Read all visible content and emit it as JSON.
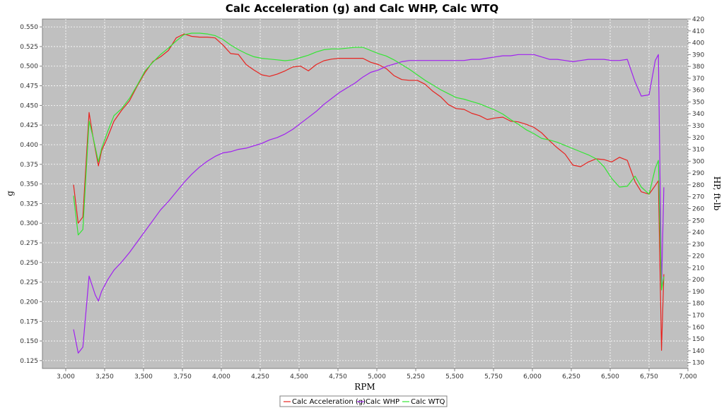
{
  "chart_data": {
    "type": "line",
    "title": "Calc Acceleration (g) and Calc WHP, Calc WTQ",
    "xlabel": "RPM",
    "ylabel_left": "g",
    "ylabel_right": "HP, ft-lb",
    "xlim": [
      2850,
      7000
    ],
    "ylim_left": [
      0.115,
      0.56
    ],
    "ylim_right": [
      125,
      420
    ],
    "x_ticks": [
      3000,
      3250,
      3500,
      3750,
      4000,
      4250,
      4500,
      4750,
      5000,
      5250,
      5500,
      5750,
      6000,
      6250,
      6500,
      6750,
      7000
    ],
    "x_tick_labels": [
      "3,000",
      "3,250",
      "3,500",
      "3,750",
      "4,000",
      "4,250",
      "4,500",
      "4,750",
      "5,000",
      "5,250",
      "5,500",
      "5,750",
      "6,000",
      "6,250",
      "6,500",
      "6,750",
      "7,000"
    ],
    "y_left_ticks": [
      0.125,
      0.15,
      0.175,
      0.2,
      0.225,
      0.25,
      0.275,
      0.3,
      0.325,
      0.35,
      0.375,
      0.4,
      0.425,
      0.45,
      0.475,
      0.5,
      0.525,
      0.55
    ],
    "y_left_tick_labels": [
      "0.125",
      "0.150",
      "0.175",
      "0.200",
      "0.225",
      "0.250",
      "0.275",
      "0.300",
      "0.325",
      "0.350",
      "0.375",
      "0.400",
      "0.425",
      "0.450",
      "0.475",
      "0.500",
      "0.525",
      "0.550"
    ],
    "y_right_ticks": [
      130,
      140,
      150,
      160,
      170,
      180,
      190,
      200,
      210,
      220,
      230,
      240,
      250,
      260,
      270,
      280,
      290,
      300,
      310,
      320,
      330,
      340,
      350,
      360,
      370,
      380,
      390,
      400,
      410,
      420
    ],
    "y_right_tick_labels": [
      "130",
      "140",
      "150",
      "160",
      "170",
      "180",
      "190",
      "200",
      "210",
      "220",
      "230",
      "240",
      "250",
      "260",
      "270",
      "280",
      "290",
      "300",
      "310",
      "320",
      "330",
      "340",
      "350",
      "360",
      "370",
      "380",
      "390",
      "400",
      "410",
      "420"
    ],
    "grid": true,
    "legend_position": "bottom-center",
    "plot_background": "#c0c0c0",
    "series": [
      {
        "name": "Calc Acceleration (g)",
        "axis": "left",
        "color": "#e8231f",
        "points": [
          [
            3050,
            0.349
          ],
          [
            3080,
            0.3
          ],
          [
            3110,
            0.308
          ],
          [
            3150,
            0.441
          ],
          [
            3175,
            0.41
          ],
          [
            3210,
            0.373
          ],
          [
            3230,
            0.392
          ],
          [
            3270,
            0.41
          ],
          [
            3310,
            0.43
          ],
          [
            3360,
            0.444
          ],
          [
            3410,
            0.456
          ],
          [
            3460,
            0.475
          ],
          [
            3510,
            0.492
          ],
          [
            3560,
            0.506
          ],
          [
            3610,
            0.512
          ],
          [
            3660,
            0.52
          ],
          [
            3710,
            0.536
          ],
          [
            3760,
            0.541
          ],
          [
            3810,
            0.538
          ],
          [
            3860,
            0.537
          ],
          [
            3910,
            0.537
          ],
          [
            3960,
            0.536
          ],
          [
            4010,
            0.527
          ],
          [
            4060,
            0.516
          ],
          [
            4110,
            0.515
          ],
          [
            4160,
            0.502
          ],
          [
            4210,
            0.495
          ],
          [
            4260,
            0.489
          ],
          [
            4310,
            0.487
          ],
          [
            4360,
            0.49
          ],
          [
            4410,
            0.494
          ],
          [
            4460,
            0.499
          ],
          [
            4510,
            0.5
          ],
          [
            4560,
            0.494
          ],
          [
            4610,
            0.502
          ],
          [
            4660,
            0.507
          ],
          [
            4710,
            0.509
          ],
          [
            4760,
            0.51
          ],
          [
            4810,
            0.51
          ],
          [
            4860,
            0.51
          ],
          [
            4910,
            0.51
          ],
          [
            4960,
            0.505
          ],
          [
            5010,
            0.502
          ],
          [
            5060,
            0.497
          ],
          [
            5110,
            0.488
          ],
          [
            5160,
            0.483
          ],
          [
            5210,
            0.482
          ],
          [
            5260,
            0.482
          ],
          [
            5310,
            0.477
          ],
          [
            5360,
            0.468
          ],
          [
            5410,
            0.461
          ],
          [
            5460,
            0.451
          ],
          [
            5510,
            0.446
          ],
          [
            5560,
            0.445
          ],
          [
            5610,
            0.44
          ],
          [
            5660,
            0.437
          ],
          [
            5710,
            0.432
          ],
          [
            5760,
            0.434
          ],
          [
            5810,
            0.435
          ],
          [
            5860,
            0.43
          ],
          [
            5910,
            0.429
          ],
          [
            5960,
            0.426
          ],
          [
            6010,
            0.422
          ],
          [
            6060,
            0.415
          ],
          [
            6110,
            0.405
          ],
          [
            6160,
            0.396
          ],
          [
            6210,
            0.388
          ],
          [
            6260,
            0.374
          ],
          [
            6310,
            0.372
          ],
          [
            6360,
            0.378
          ],
          [
            6410,
            0.382
          ],
          [
            6460,
            0.381
          ],
          [
            6510,
            0.378
          ],
          [
            6560,
            0.384
          ],
          [
            6610,
            0.38
          ],
          [
            6660,
            0.353
          ],
          [
            6700,
            0.34
          ],
          [
            6750,
            0.337
          ],
          [
            6790,
            0.348
          ],
          [
            6810,
            0.354
          ],
          [
            6830,
            0.138
          ],
          [
            6845,
            0.235
          ]
        ]
      },
      {
        "name": "Calc WHP",
        "axis": "right",
        "color": "#a020f0",
        "points": [
          [
            3050,
            158
          ],
          [
            3080,
            138
          ],
          [
            3110,
            143
          ],
          [
            3150,
            203
          ],
          [
            3190,
            187
          ],
          [
            3210,
            182
          ],
          [
            3230,
            190
          ],
          [
            3270,
            200
          ],
          [
            3310,
            208
          ],
          [
            3360,
            215
          ],
          [
            3410,
            223
          ],
          [
            3460,
            232
          ],
          [
            3510,
            241
          ],
          [
            3560,
            250
          ],
          [
            3610,
            259
          ],
          [
            3660,
            266
          ],
          [
            3710,
            274
          ],
          [
            3760,
            282
          ],
          [
            3810,
            289
          ],
          [
            3860,
            295
          ],
          [
            3910,
            300
          ],
          [
            3960,
            304
          ],
          [
            4010,
            307
          ],
          [
            4060,
            308
          ],
          [
            4110,
            310
          ],
          [
            4160,
            311
          ],
          [
            4210,
            313
          ],
          [
            4260,
            315
          ],
          [
            4310,
            318
          ],
          [
            4360,
            320
          ],
          [
            4410,
            323
          ],
          [
            4460,
            327
          ],
          [
            4510,
            332
          ],
          [
            4560,
            337
          ],
          [
            4610,
            342
          ],
          [
            4660,
            348
          ],
          [
            4710,
            353
          ],
          [
            4760,
            358
          ],
          [
            4810,
            362
          ],
          [
            4860,
            366
          ],
          [
            4910,
            371
          ],
          [
            4960,
            375
          ],
          [
            5010,
            377
          ],
          [
            5060,
            380
          ],
          [
            5110,
            382
          ],
          [
            5160,
            384
          ],
          [
            5210,
            385
          ],
          [
            5260,
            385
          ],
          [
            5310,
            385
          ],
          [
            5360,
            385
          ],
          [
            5410,
            385
          ],
          [
            5460,
            385
          ],
          [
            5510,
            385
          ],
          [
            5560,
            385
          ],
          [
            5610,
            386
          ],
          [
            5660,
            386
          ],
          [
            5710,
            387
          ],
          [
            5760,
            388
          ],
          [
            5810,
            389
          ],
          [
            5860,
            389
          ],
          [
            5910,
            390
          ],
          [
            5960,
            390
          ],
          [
            6010,
            390
          ],
          [
            6060,
            388
          ],
          [
            6110,
            386
          ],
          [
            6160,
            386
          ],
          [
            6210,
            385
          ],
          [
            6260,
            384
          ],
          [
            6310,
            385
          ],
          [
            6360,
            386
          ],
          [
            6410,
            386
          ],
          [
            6460,
            386
          ],
          [
            6510,
            385
          ],
          [
            6560,
            385
          ],
          [
            6610,
            386
          ],
          [
            6660,
            367
          ],
          [
            6700,
            355
          ],
          [
            6750,
            356
          ],
          [
            6790,
            385
          ],
          [
            6810,
            390
          ],
          [
            6830,
            192
          ],
          [
            6845,
            278
          ]
        ]
      },
      {
        "name": "Calc WTQ",
        "axis": "left",
        "color": "#33e633",
        "points": [
          [
            3050,
            0.335
          ],
          [
            3080,
            0.285
          ],
          [
            3110,
            0.292
          ],
          [
            3150,
            0.43
          ],
          [
            3175,
            0.41
          ],
          [
            3210,
            0.378
          ],
          [
            3230,
            0.395
          ],
          [
            3270,
            0.417
          ],
          [
            3310,
            0.437
          ],
          [
            3360,
            0.446
          ],
          [
            3410,
            0.459
          ],
          [
            3460,
            0.476
          ],
          [
            3510,
            0.494
          ],
          [
            3560,
            0.505
          ],
          [
            3610,
            0.515
          ],
          [
            3660,
            0.523
          ],
          [
            3710,
            0.532
          ],
          [
            3760,
            0.54
          ],
          [
            3810,
            0.542
          ],
          [
            3860,
            0.542
          ],
          [
            3910,
            0.541
          ],
          [
            3960,
            0.539
          ],
          [
            4010,
            0.534
          ],
          [
            4060,
            0.527
          ],
          [
            4110,
            0.521
          ],
          [
            4160,
            0.516
          ],
          [
            4210,
            0.512
          ],
          [
            4260,
            0.51
          ],
          [
            4310,
            0.509
          ],
          [
            4360,
            0.508
          ],
          [
            4410,
            0.507
          ],
          [
            4460,
            0.508
          ],
          [
            4510,
            0.511
          ],
          [
            4560,
            0.514
          ],
          [
            4610,
            0.518
          ],
          [
            4660,
            0.521
          ],
          [
            4710,
            0.522
          ],
          [
            4760,
            0.522
          ],
          [
            4810,
            0.523
          ],
          [
            4860,
            0.524
          ],
          [
            4910,
            0.524
          ],
          [
            4960,
            0.52
          ],
          [
            5010,
            0.516
          ],
          [
            5060,
            0.513
          ],
          [
            5110,
            0.508
          ],
          [
            5160,
            0.502
          ],
          [
            5210,
            0.496
          ],
          [
            5260,
            0.489
          ],
          [
            5310,
            0.482
          ],
          [
            5360,
            0.476
          ],
          [
            5410,
            0.47
          ],
          [
            5460,
            0.465
          ],
          [
            5510,
            0.46
          ],
          [
            5560,
            0.458
          ],
          [
            5610,
            0.455
          ],
          [
            5660,
            0.452
          ],
          [
            5710,
            0.448
          ],
          [
            5760,
            0.444
          ],
          [
            5810,
            0.439
          ],
          [
            5860,
            0.432
          ],
          [
            5910,
            0.426
          ],
          [
            5960,
            0.419
          ],
          [
            6010,
            0.414
          ],
          [
            6060,
            0.408
          ],
          [
            6110,
            0.406
          ],
          [
            6160,
            0.403
          ],
          [
            6210,
            0.399
          ],
          [
            6260,
            0.395
          ],
          [
            6310,
            0.391
          ],
          [
            6360,
            0.387
          ],
          [
            6410,
            0.382
          ],
          [
            6460,
            0.372
          ],
          [
            6510,
            0.357
          ],
          [
            6560,
            0.346
          ],
          [
            6610,
            0.347
          ],
          [
            6660,
            0.36
          ],
          [
            6700,
            0.346
          ],
          [
            6750,
            0.337
          ],
          [
            6790,
            0.37
          ],
          [
            6810,
            0.38
          ],
          [
            6830,
            0.215
          ],
          [
            6845,
            0.232
          ]
        ]
      }
    ]
  }
}
